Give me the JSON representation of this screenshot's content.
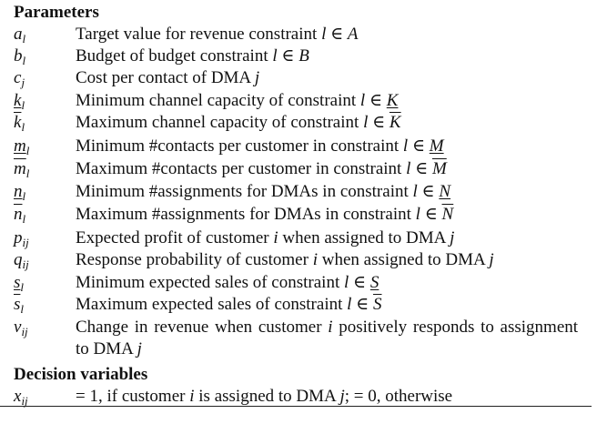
{
  "sections": {
    "parameters_heading": "Parameters",
    "decision_heading": "Decision variables"
  },
  "parameters": [
    {
      "symbol": "a",
      "sub": "l",
      "mark": "",
      "description": "Target value for revenue constraint l ∈ A"
    },
    {
      "symbol": "b",
      "sub": "l",
      "mark": "",
      "description": "Budget of budget constraint l ∈ B"
    },
    {
      "symbol": "c",
      "sub": "j",
      "mark": "",
      "description": "Cost per contact of DMA j"
    },
    {
      "symbol": "k",
      "sub": "l",
      "mark": "under",
      "description": "Minimum channel capacity of constraint l ∈ K"
    },
    {
      "symbol": "k",
      "sub": "l",
      "mark": "over",
      "description": "Maximum channel capacity of constraint l ∈ K"
    },
    {
      "symbol": "m",
      "sub": "l",
      "mark": "under",
      "description": "Minimum #contacts per customer in constraint l ∈ M"
    },
    {
      "symbol": "m",
      "sub": "l",
      "mark": "over",
      "description": "Maximum #contacts per customer in constraint l ∈ M"
    },
    {
      "symbol": "n",
      "sub": "l",
      "mark": "under",
      "description": "Minimum #assignments for DMAs in constraint l ∈ N"
    },
    {
      "symbol": "n",
      "sub": "l",
      "mark": "over",
      "description": "Maximum #assignments for DMAs in constraint l ∈ N"
    },
    {
      "symbol": "p",
      "sub": "ij",
      "mark": "",
      "description": "Expected profit of customer i when assigned to DMA j"
    },
    {
      "symbol": "q",
      "sub": "ij",
      "mark": "",
      "description": "Response probability of customer i when assigned to DMA j"
    },
    {
      "symbol": "s",
      "sub": "l",
      "mark": "under",
      "description": "Minimum expected sales of constraint l ∈ S"
    },
    {
      "symbol": "s",
      "sub": "l",
      "mark": "over",
      "description": "Maximum expected sales of constraint l ∈ S"
    },
    {
      "symbol": "v",
      "sub": "ij",
      "mark": "",
      "description": "Change in revenue when customer i positively responds to assignment to DMA j"
    }
  ],
  "decision_variables": [
    {
      "symbol": "x",
      "sub": "ij",
      "mark": "",
      "description": "= 1, if customer i is assigned to DMA j; = 0, otherwise"
    }
  ]
}
